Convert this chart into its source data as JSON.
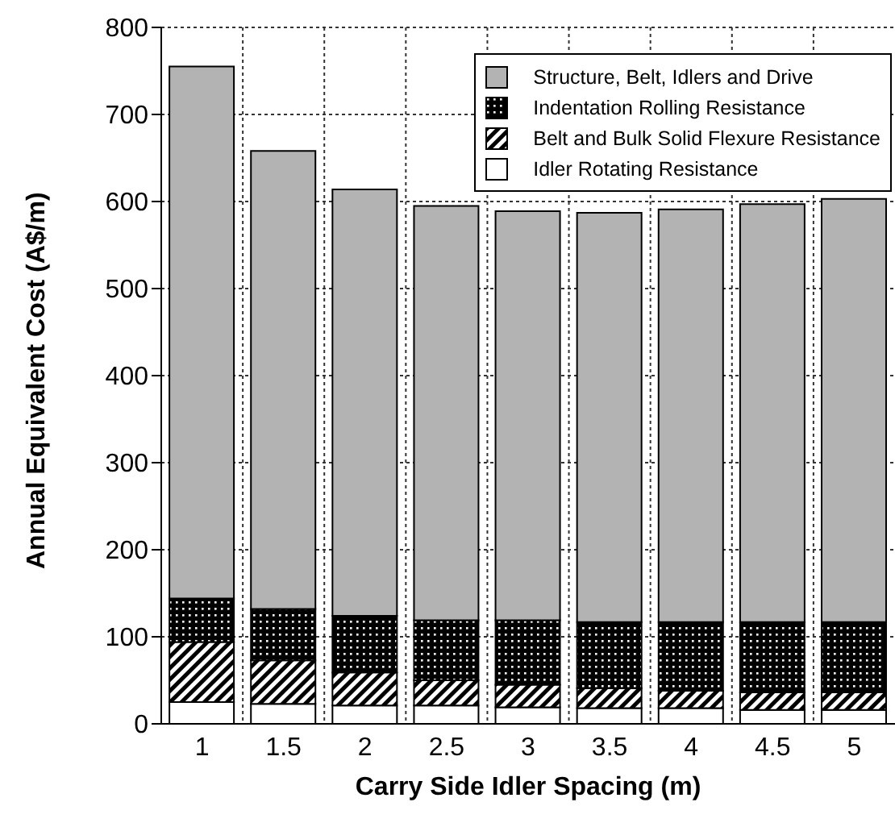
{
  "chart_data": {
    "type": "bar",
    "stacked": true,
    "xlabel": "Carry Side Idler Spacing (m)",
    "ylabel": "Annual Equivalent Cost (A$/m)",
    "categories": [
      "1",
      "1.5",
      "2",
      "2.5",
      "3",
      "3.5",
      "4",
      "4.5",
      "5"
    ],
    "series": [
      {
        "name": "Idler Rotating Resistance",
        "color": "#ffffff",
        "values": [
          25,
          23,
          21,
          21,
          19,
          18,
          18,
          16,
          16
        ]
      },
      {
        "name": "Belt and Bulk Solid Flexure Resistance",
        "color": "#000000",
        "values": [
          69,
          50,
          38,
          29,
          26,
          23,
          20,
          20,
          20
        ]
      },
      {
        "name": "Indentation Rolling Resistance",
        "color": "#000000",
        "values": [
          50,
          59,
          65,
          69,
          74,
          76,
          79,
          81,
          81
        ]
      },
      {
        "name": "Structure, Belt, Idlers and Drive",
        "color": "#b3b3b3",
        "values": [
          611,
          526,
          490,
          476,
          470,
          470,
          474,
          480,
          486
        ]
      }
    ],
    "ylim": [
      0,
      800
    ],
    "yticks": [
      0,
      100,
      200,
      300,
      400,
      500,
      600,
      700,
      800
    ],
    "grid": true,
    "legend": "top right"
  }
}
